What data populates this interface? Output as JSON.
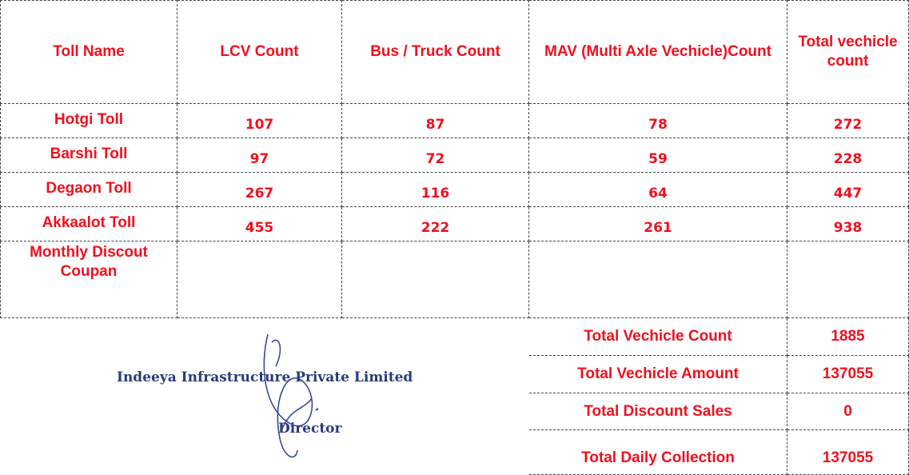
{
  "table": {
    "header": [
      "Toll Name",
      "LCV Count",
      "Bus / Truck Count",
      "MAV (Multi Axle Vechicle)Count",
      "Total vechicle count"
    ],
    "rows": [
      {
        "name": "Hotgi Toll",
        "values": [
          107,
          87,
          78,
          272
        ]
      },
      {
        "name": "Barshi Toll",
        "values": [
          97,
          72,
          59,
          228
        ]
      },
      {
        "name": "Degaon Toll",
        "values": [
          267,
          116,
          64,
          447
        ]
      },
      {
        "name": "Akkaalot Toll",
        "values": [
          455,
          222,
          261,
          938
        ]
      },
      {
        "name": "Monthly Discout Coupan"
      }
    ]
  },
  "summary": [
    {
      "label": "Total Vechicle Count",
      "value": 1885
    },
    {
      "label": "Total Vechicle Amount",
      "value": 137055
    },
    {
      "label": "Total Discount Sales",
      "value": 0
    },
    {
      "label": "Total Daily Collection",
      "value": 137055
    }
  ],
  "signature": {
    "company": "Indeeya Infrastructure Private Limited",
    "title": "Director"
  }
}
